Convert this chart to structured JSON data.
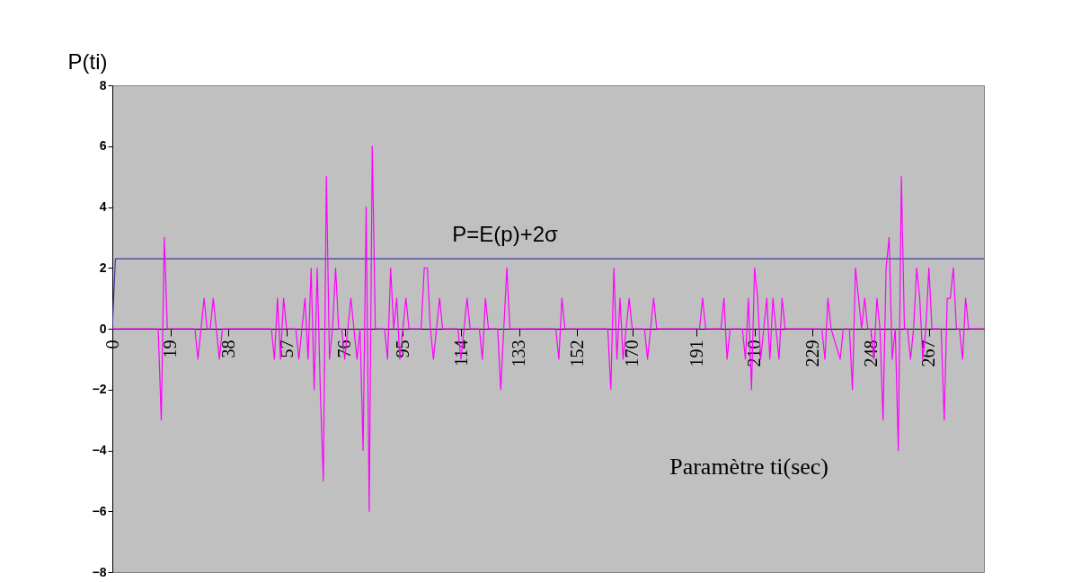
{
  "chart_data": {
    "type": "line",
    "ylabel": "P(ti)",
    "xlabel": "Paramètre ti(sec)",
    "xlim": [
      0,
      285
    ],
    "xticks": [
      0,
      19,
      38,
      57,
      76,
      95,
      114,
      133,
      152,
      170,
      191,
      210,
      229,
      248,
      267
    ],
    "ylim": [
      -8,
      8
    ],
    "yticks": [
      -8,
      -6,
      -4,
      -2,
      0,
      2,
      4,
      6,
      8
    ],
    "grid": false,
    "marker": "none",
    "series": [
      {
        "name": "P=E(p)+2σ",
        "color": "#3a3a9a",
        "x": [
          0,
          1,
          285
        ],
        "values": [
          0,
          2.3,
          2.3
        ]
      },
      {
        "color": "#ff00ff",
        "x": [
          0,
          15,
          16,
          17,
          18,
          27,
          28,
          29,
          30,
          31,
          32,
          33,
          34,
          35,
          36,
          52,
          53,
          54,
          55,
          56,
          57,
          60,
          61,
          62,
          63,
          64,
          65,
          66,
          67,
          68,
          69,
          70,
          71,
          72,
          73,
          74,
          75,
          76,
          77,
          78,
          79,
          80,
          81,
          82,
          83,
          84,
          85,
          86,
          89,
          90,
          91,
          92,
          93,
          94,
          95,
          96,
          97,
          101,
          102,
          103,
          104,
          105,
          106,
          107,
          108,
          113,
          114,
          115,
          116,
          117,
          120,
          121,
          122,
          123,
          126,
          127,
          128,
          129,
          130,
          145,
          146,
          147,
          148,
          162,
          163,
          164,
          165,
          166,
          167,
          168,
          169,
          170,
          174,
          175,
          176,
          177,
          178,
          192,
          193,
          194,
          199,
          200,
          201,
          202,
          206,
          207,
          208,
          209,
          210,
          211,
          212,
          213,
          214,
          215,
          216,
          217,
          218,
          219,
          220,
          232,
          233,
          234,
          235,
          238,
          239,
          241,
          242,
          243,
          244,
          245,
          246,
          247,
          248,
          249,
          250,
          251,
          252,
          253,
          254,
          255,
          256,
          257,
          258,
          259,
          260,
          261,
          262,
          263,
          264,
          265,
          266,
          267,
          268,
          271,
          272,
          273,
          274,
          275,
          276,
          277,
          278,
          279,
          280,
          285
        ],
        "values": [
          0,
          0,
          -3,
          3,
          0,
          0,
          -1,
          0,
          1,
          0,
          0,
          1,
          0,
          -1,
          0,
          0,
          -1,
          1,
          -1,
          1,
          0,
          0,
          -1,
          0,
          1,
          -1,
          2,
          -2,
          2,
          -2,
          -5,
          5,
          -1,
          0,
          2,
          0,
          0,
          -1,
          0,
          1,
          0,
          -1,
          0,
          -4,
          4,
          -6,
          6,
          0,
          0,
          -1,
          2,
          0,
          1,
          -1,
          0,
          1,
          0,
          0,
          2,
          2,
          0,
          -1,
          0,
          1,
          0,
          0,
          -1,
          0,
          1,
          0,
          0,
          -1,
          1,
          0,
          0,
          -2,
          0,
          2,
          0,
          0,
          -1,
          1,
          0,
          0,
          -2,
          2,
          -1,
          1,
          -1,
          0,
          1,
          0,
          0,
          -1,
          0,
          1,
          0,
          0,
          1,
          0,
          0,
          1,
          -1,
          0,
          0,
          -1,
          1,
          -2,
          2,
          1,
          -1,
          0,
          1,
          -1,
          1,
          0,
          -1,
          1,
          0,
          0,
          -1,
          1,
          0,
          -1,
          0,
          0,
          -2,
          2,
          1,
          0,
          1,
          0,
          0,
          -1,
          1,
          0,
          -3,
          2,
          3,
          -1,
          0,
          -4,
          5,
          0,
          0,
          -1,
          0,
          2,
          1,
          -1,
          0,
          2,
          0,
          0,
          -3,
          1,
          1,
          2,
          0,
          0,
          -1,
          1,
          0,
          0
        ]
      }
    ]
  }
}
